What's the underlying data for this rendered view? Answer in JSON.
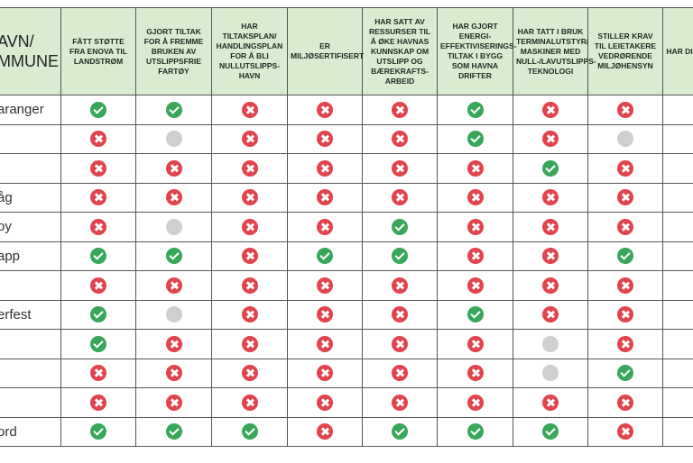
{
  "header": {
    "title": "AVN/ MMUNE",
    "columns": [
      "FÅTT STØTTE FRA ENOVA TIL LANDSTRØM",
      "GJORT TILTAK FOR Å FREMME BRUKEN AV UTSLIPPSFRIE FARTØY",
      "HAR TILTAKSPLAN/ HANDLINGSPLAN FOR Å BLI NULLUTSLIPPS-HAVN",
      "ER MILJØSERTIFISERT",
      "HAR SATT AV RESSURSER TIL Å ØKE HAVNAS KUNNSKAP OM UTSLIPP OG BÆREKRAFTS-ARBEID",
      "HAR GJORT ENERGI-EFFEKTIVISERINGS-TILTAK I BYGG SOM HAVNA DRIFTER",
      "HAR TATT I BRUK TERMINALUTSTYR/ MASKINER MED NULL-/LAVUTSLIPPS-TEKNOLOGI",
      "STILLER KRAV TIL LEIETAKERE VEDRØRENDE MILJØHENSYN",
      "HAR DIFFER AV HAV"
    ]
  },
  "table": {
    "rows": [
      "aranger",
      null,
      null,
      "åg",
      "oy",
      "app",
      null,
      "erfest",
      null,
      null,
      null,
      "ord"
    ]
  }
}
